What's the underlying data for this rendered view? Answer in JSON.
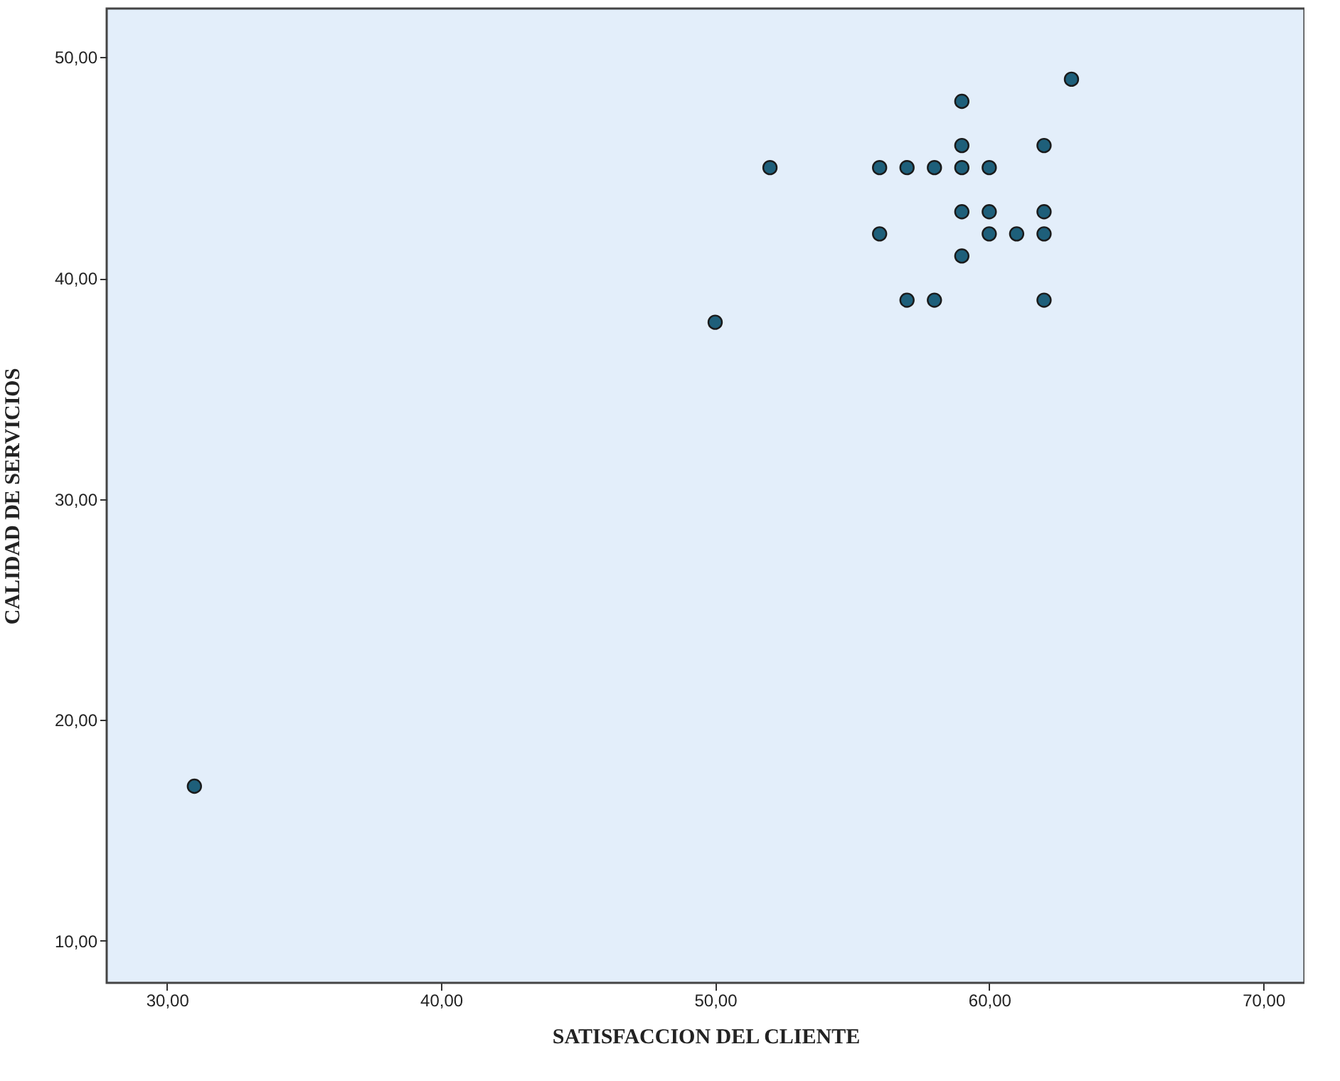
{
  "chart_data": {
    "type": "scatter",
    "xlabel": "SATISFACCION DEL CLIENTE",
    "ylabel": "CALIDAD DE SERVICIOS",
    "x": [
      31,
      50,
      52,
      56,
      56,
      57,
      57,
      58,
      58,
      59,
      59,
      59,
      59,
      59,
      60,
      60,
      60,
      61,
      62,
      62,
      62,
      62,
      63
    ],
    "series": [
      {
        "color": "#1e5f7a",
        "values": [
          17,
          38,
          45,
          45,
          42,
          45,
          39,
          45,
          39,
          48,
          46,
          45,
          43,
          41,
          45,
          43,
          42,
          42,
          46,
          43,
          42,
          39,
          49
        ]
      }
    ],
    "xlim": [
      27.8,
      71.5
    ],
    "xticks": [
      {
        "value": 30,
        "label": "30,00"
      },
      {
        "value": 40,
        "label": "40,00"
      },
      {
        "value": 50,
        "label": "50,00"
      },
      {
        "value": 60,
        "label": "60,00"
      },
      {
        "value": 70,
        "label": "70,00"
      }
    ],
    "ylim": [
      8.1,
      52.2
    ],
    "yticks": [
      {
        "value": 10,
        "label": "10,00"
      },
      {
        "value": 20,
        "label": "20,00"
      },
      {
        "value": 30,
        "label": "30,00"
      },
      {
        "value": 40,
        "label": "40,00"
      },
      {
        "value": 50,
        "label": "50,00"
      }
    ],
    "grid": false,
    "marker": "circle"
  }
}
